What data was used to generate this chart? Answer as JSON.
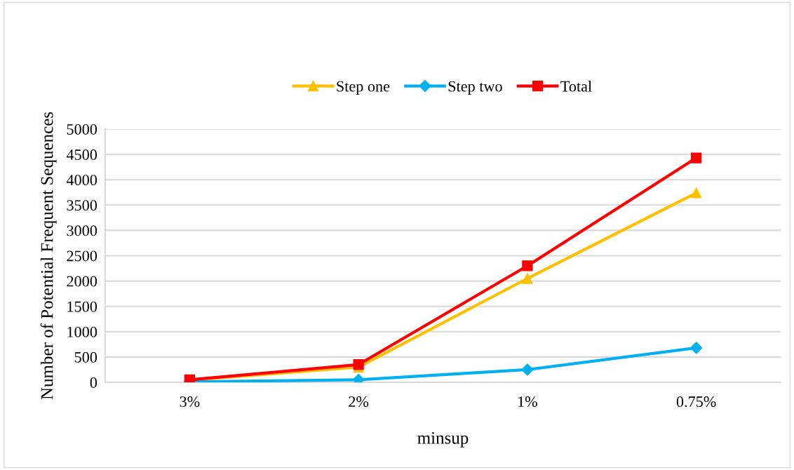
{
  "chart_data": {
    "type": "line",
    "xlabel": "minsup",
    "ylabel": "Number of Potential Frequent Sequences",
    "categories": [
      "3%",
      "2%",
      "1%",
      "0.75%"
    ],
    "series": [
      {
        "name": "Step one",
        "color": "#ffc000",
        "marker": "triangle",
        "values": [
          40,
          300,
          2050,
          3740
        ]
      },
      {
        "name": "Step two",
        "color": "#00b0f0",
        "marker": "diamond",
        "values": [
          10,
          50,
          250,
          680
        ]
      },
      {
        "name": "Total",
        "color": "#ff0000",
        "marker": "square",
        "values": [
          50,
          350,
          2300,
          4430
        ]
      }
    ],
    "ylim": [
      0,
      5000
    ],
    "yticks": [
      0,
      500,
      1000,
      1500,
      2000,
      2500,
      3000,
      3500,
      4000,
      4500,
      5000
    ],
    "grid": "y",
    "legend": "top",
    "line_style": "solid"
  }
}
